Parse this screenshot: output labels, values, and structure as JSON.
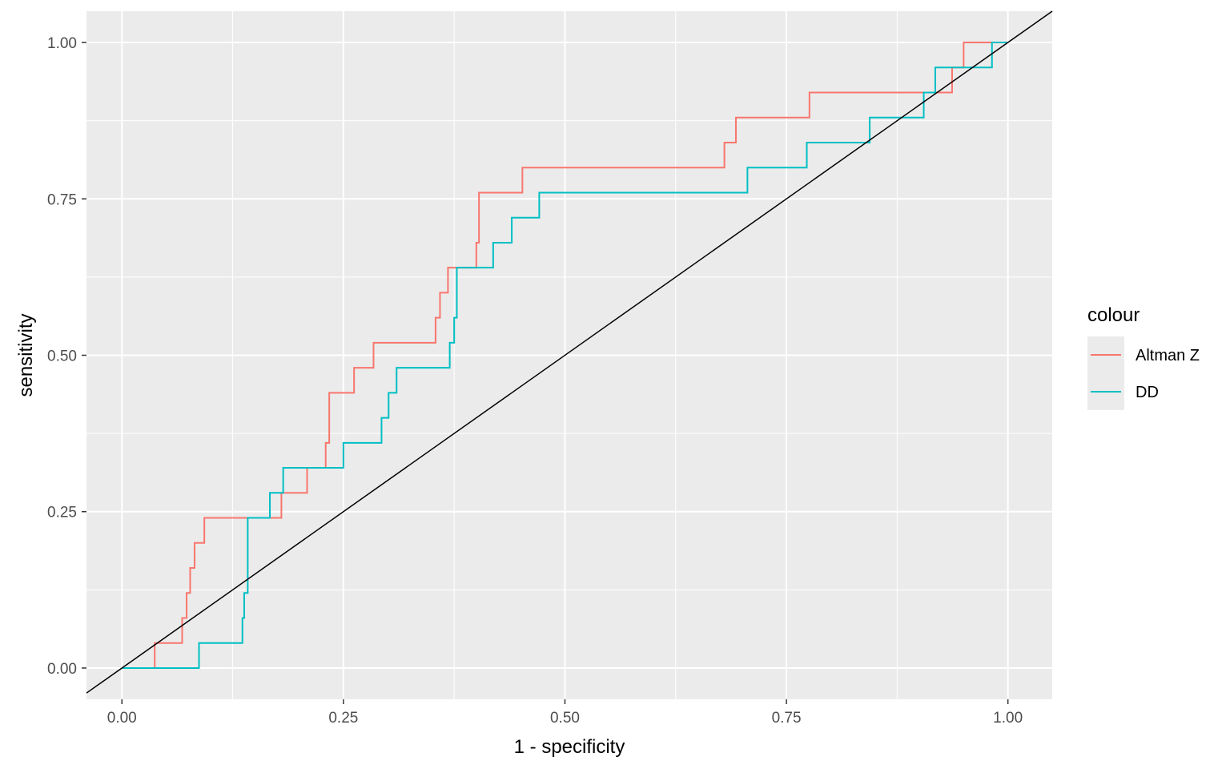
{
  "chart_data": {
    "type": "line",
    "step": true,
    "title": "",
    "xlabel": "1 - specificity",
    "ylabel": "sensitivity",
    "xlim": [
      -0.04,
      1.05
    ],
    "ylim": [
      -0.05,
      1.05
    ],
    "x_ticks": [
      0.0,
      0.25,
      0.5,
      0.75,
      1.0
    ],
    "x_tick_labels": [
      "0.00",
      "0.25",
      "0.50",
      "0.75",
      "1.00"
    ],
    "y_ticks": [
      0.0,
      0.25,
      0.5,
      0.75,
      1.0
    ],
    "y_tick_labels": [
      "0.00",
      "0.25",
      "0.50",
      "0.75",
      "1.00"
    ],
    "grid": true,
    "background": "#ebebeb",
    "legend": {
      "title": "colour",
      "position": "right"
    },
    "reference_line": {
      "from": [
        0,
        0
      ],
      "to": [
        1,
        1
      ],
      "color": "#000000"
    },
    "series": [
      {
        "name": "Altman Z",
        "color": "#F8766D",
        "points": [
          [
            0.0,
            0.0
          ],
          [
            0.037,
            0.0
          ],
          [
            0.037,
            0.04
          ],
          [
            0.068,
            0.04
          ],
          [
            0.068,
            0.08
          ],
          [
            0.073,
            0.08
          ],
          [
            0.073,
            0.12
          ],
          [
            0.077,
            0.12
          ],
          [
            0.077,
            0.16
          ],
          [
            0.082,
            0.16
          ],
          [
            0.082,
            0.2
          ],
          [
            0.093,
            0.2
          ],
          [
            0.093,
            0.24
          ],
          [
            0.18,
            0.24
          ],
          [
            0.18,
            0.28
          ],
          [
            0.209,
            0.28
          ],
          [
            0.209,
            0.32
          ],
          [
            0.23,
            0.32
          ],
          [
            0.23,
            0.36
          ],
          [
            0.234,
            0.36
          ],
          [
            0.234,
            0.44
          ],
          [
            0.262,
            0.44
          ],
          [
            0.262,
            0.48
          ],
          [
            0.284,
            0.48
          ],
          [
            0.284,
            0.52
          ],
          [
            0.354,
            0.52
          ],
          [
            0.354,
            0.56
          ],
          [
            0.359,
            0.56
          ],
          [
            0.359,
            0.6
          ],
          [
            0.368,
            0.6
          ],
          [
            0.368,
            0.64
          ],
          [
            0.4,
            0.64
          ],
          [
            0.4,
            0.68
          ],
          [
            0.403,
            0.68
          ],
          [
            0.403,
            0.76
          ],
          [
            0.452,
            0.76
          ],
          [
            0.452,
            0.8
          ],
          [
            0.68,
            0.8
          ],
          [
            0.68,
            0.84
          ],
          [
            0.693,
            0.84
          ],
          [
            0.693,
            0.88
          ],
          [
            0.776,
            0.88
          ],
          [
            0.776,
            0.92
          ],
          [
            0.937,
            0.92
          ],
          [
            0.937,
            0.96
          ],
          [
            0.95,
            0.96
          ],
          [
            0.95,
            1.0
          ],
          [
            0.982,
            1.0
          ]
        ]
      },
      {
        "name": "DD",
        "color": "#00BFC4",
        "points": [
          [
            0.0,
            0.0
          ],
          [
            0.087,
            0.0
          ],
          [
            0.087,
            0.04
          ],
          [
            0.136,
            0.04
          ],
          [
            0.136,
            0.08
          ],
          [
            0.138,
            0.08
          ],
          [
            0.138,
            0.12
          ],
          [
            0.142,
            0.12
          ],
          [
            0.142,
            0.24
          ],
          [
            0.167,
            0.24
          ],
          [
            0.167,
            0.28
          ],
          [
            0.182,
            0.28
          ],
          [
            0.182,
            0.32
          ],
          [
            0.25,
            0.32
          ],
          [
            0.25,
            0.36
          ],
          [
            0.293,
            0.36
          ],
          [
            0.293,
            0.4
          ],
          [
            0.301,
            0.4
          ],
          [
            0.301,
            0.44
          ],
          [
            0.31,
            0.44
          ],
          [
            0.31,
            0.48
          ],
          [
            0.37,
            0.48
          ],
          [
            0.37,
            0.52
          ],
          [
            0.375,
            0.52
          ],
          [
            0.375,
            0.56
          ],
          [
            0.378,
            0.56
          ],
          [
            0.378,
            0.64
          ],
          [
            0.419,
            0.64
          ],
          [
            0.419,
            0.68
          ],
          [
            0.44,
            0.68
          ],
          [
            0.44,
            0.72
          ],
          [
            0.471,
            0.72
          ],
          [
            0.471,
            0.76
          ],
          [
            0.706,
            0.76
          ],
          [
            0.706,
            0.8
          ],
          [
            0.773,
            0.8
          ],
          [
            0.773,
            0.84
          ],
          [
            0.844,
            0.84
          ],
          [
            0.844,
            0.88
          ],
          [
            0.905,
            0.88
          ],
          [
            0.905,
            0.92
          ],
          [
            0.918,
            0.92
          ],
          [
            0.918,
            0.96
          ],
          [
            0.982,
            0.96
          ],
          [
            0.982,
            1.0
          ],
          [
            1.0,
            1.0
          ]
        ]
      }
    ]
  }
}
